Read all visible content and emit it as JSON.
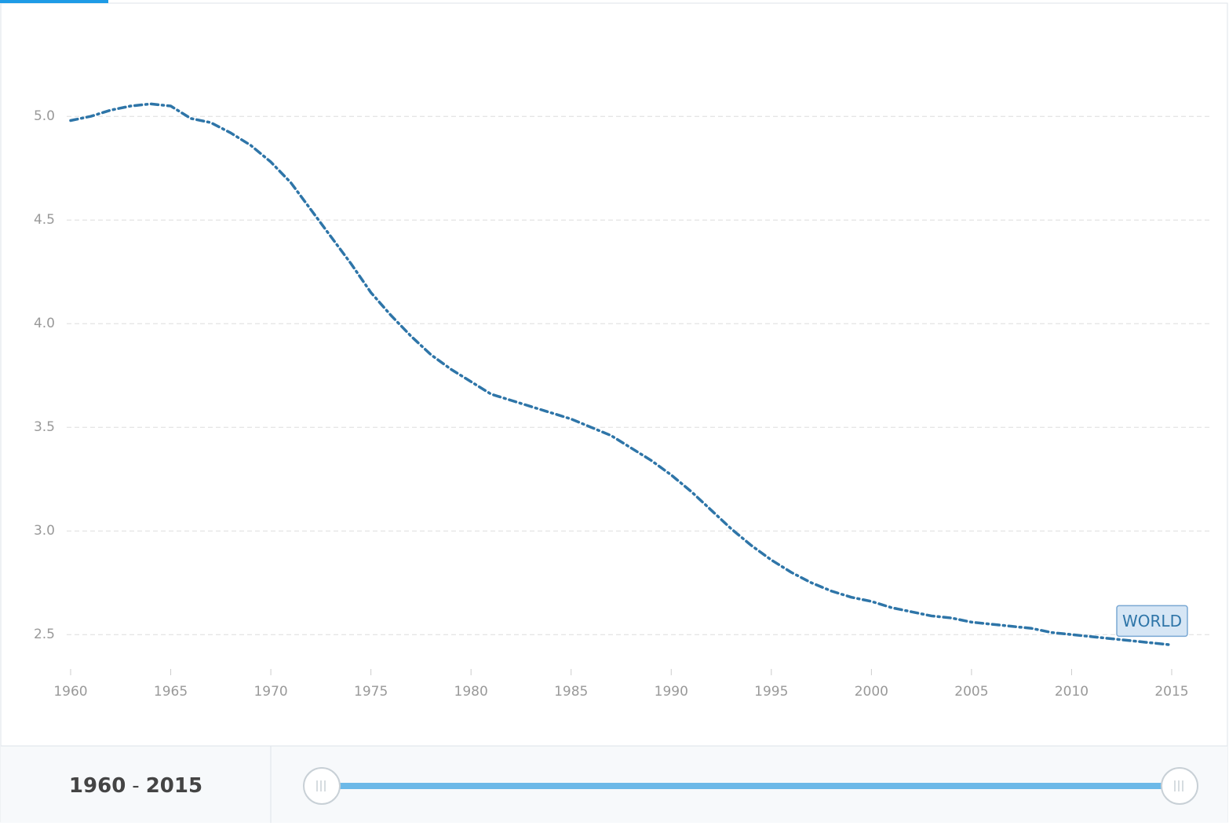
{
  "chart_data": {
    "type": "line",
    "x": [
      1960,
      1961,
      1962,
      1963,
      1964,
      1965,
      1966,
      1967,
      1968,
      1969,
      1970,
      1971,
      1972,
      1973,
      1974,
      1975,
      1976,
      1977,
      1978,
      1979,
      1980,
      1981,
      1982,
      1983,
      1984,
      1985,
      1986,
      1987,
      1988,
      1989,
      1990,
      1991,
      1992,
      1993,
      1994,
      1995,
      1996,
      1997,
      1998,
      1999,
      2000,
      2001,
      2002,
      2003,
      2004,
      2005,
      2006,
      2007,
      2008,
      2009,
      2010,
      2011,
      2012,
      2013,
      2014,
      2015
    ],
    "series": [
      {
        "name": "WORLD",
        "color": "#2e75a8",
        "values": [
          4.98,
          5.0,
          5.03,
          5.05,
          5.06,
          5.05,
          4.99,
          4.97,
          4.92,
          4.86,
          4.78,
          4.68,
          4.55,
          4.42,
          4.29,
          4.15,
          4.04,
          3.94,
          3.85,
          3.78,
          3.72,
          3.66,
          3.63,
          3.6,
          3.57,
          3.54,
          3.5,
          3.46,
          3.4,
          3.34,
          3.27,
          3.19,
          3.1,
          3.01,
          2.93,
          2.86,
          2.8,
          2.75,
          2.71,
          2.68,
          2.66,
          2.63,
          2.61,
          2.59,
          2.58,
          2.56,
          2.55,
          2.54,
          2.53,
          2.51,
          2.5,
          2.49,
          2.48,
          2.47,
          2.46,
          2.45
        ]
      }
    ],
    "xlim": [
      1960,
      2015
    ],
    "xticks": [
      1960,
      1965,
      1970,
      1975,
      1980,
      1985,
      1990,
      1995,
      2000,
      2005,
      2010,
      2015
    ],
    "ylim": [
      2.3,
      5.3
    ],
    "yticks": [
      {
        "value": 2.5,
        "label": "2.5"
      },
      {
        "value": 3,
        "label": "3.0"
      },
      3.5,
      {
        "value": 4,
        "label": "4.0"
      },
      4.5,
      {
        "value": 5,
        "label": "5.0"
      }
    ],
    "grid": true
  },
  "slider": {
    "start": "1960",
    "separator": "-",
    "end": "2015"
  }
}
